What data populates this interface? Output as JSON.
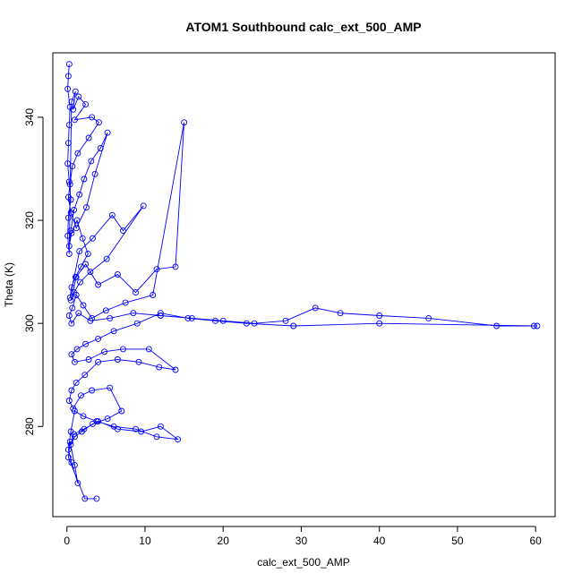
{
  "chart_data": {
    "type": "line",
    "title": "ATOM1 Southbound calc_ext_500_AMP",
    "xlabel": "calc_ext_500_AMP",
    "ylabel": "Theta (K)",
    "xlim": [
      -1.8,
      62.5
    ],
    "ylim": [
      262.5,
      352.5
    ],
    "x_ticks": [
      0,
      10,
      20,
      30,
      40,
      50,
      60
    ],
    "y_ticks": [
      280,
      300,
      320,
      340
    ],
    "grid": false,
    "series_color": "#0000FF",
    "marker": "open-circle",
    "series": [
      {
        "x": [
          0.3,
          0.2,
          0.1,
          0.4,
          0.3,
          0.2,
          0.1,
          0.3,
          0.5,
          0.2,
          0.1,
          0.3,
          0.6,
          1.1,
          0.8,
          1.5,
          2.4,
          1.0,
          3.2,
          4.1,
          2.8,
          1.4,
          0.7,
          0.4,
          0.2,
          0.5,
          1.2,
          2.5,
          3.6,
          5.2,
          4.3,
          3.1,
          2.2,
          1.6,
          0.9,
          0.5,
          0.3,
          0.6,
          1.3,
          2.0,
          2.7,
          1.8,
          1.1,
          0.6,
          0.4,
          1.6,
          3.3,
          5.8,
          7.2,
          9.8,
          5.1,
          3.0,
          1.7,
          0.9,
          0.5,
          1.2,
          2.4,
          4.0,
          6.5,
          8.8,
          11.5,
          13.9,
          15.0,
          11.0,
          7.5,
          5.0,
          3.2,
          2.1,
          1.2,
          0.7,
          0.3,
          0.6,
          1.5,
          3.0,
          5.5,
          8.5,
          12.0,
          16.0,
          20.0,
          24.0,
          28.0,
          31.8,
          35.0,
          40.0,
          46.3,
          55.0,
          60.2,
          59.8,
          40.0,
          29.0,
          23.0,
          19.0,
          15.5,
          12.0,
          9.0,
          6.0,
          4.0,
          2.4,
          1.3,
          0.6,
          1.0,
          2.8,
          4.8,
          7.2,
          10.5,
          13.9,
          11.8,
          9.2,
          6.5,
          4.0,
          2.3,
          1.2,
          0.6,
          0.3,
          0.8,
          1.8,
          3.2,
          5.5,
          7.0,
          5.2,
          3.3,
          1.9,
          1.0,
          0.5,
          0.9,
          2.2,
          4.0,
          6.5,
          9.5,
          12.0,
          14.2,
          11.5,
          8.8,
          6.0,
          3.8,
          2.1,
          1.0,
          0.5,
          0.2,
          0.6,
          1.4,
          1.0,
          0.4,
          0.2,
          2.3,
          3.8
        ],
        "y": [
          350.3,
          348.0,
          345.5,
          342.0,
          338.5,
          335.0,
          331.0,
          327.5,
          324.0,
          320.5,
          317.0,
          313.5,
          343.0,
          345.0,
          341.5,
          344.0,
          342.5,
          339.5,
          340.0,
          339.0,
          336.0,
          333.0,
          330.5,
          327.0,
          324.5,
          321.5,
          318.5,
          322.5,
          329.0,
          337.0,
          334.0,
          331.5,
          328.0,
          325.0,
          322.0,
          318.0,
          315.0,
          317.5,
          320.0,
          316.5,
          313.5,
          311.0,
          309.0,
          307.0,
          305.0,
          314.0,
          316.5,
          321.0,
          318.0,
          322.8,
          312.5,
          310.0,
          308.0,
          306.0,
          304.5,
          309.0,
          311.5,
          307.5,
          309.5,
          306.0,
          310.5,
          311.0,
          339.0,
          305.5,
          304.0,
          302.5,
          301.0,
          303.5,
          305.5,
          303.0,
          301.5,
          300.0,
          302.0,
          300.5,
          301.0,
          302.0,
          301.5,
          301.0,
          300.5,
          300.0,
          300.5,
          303.0,
          302.0,
          301.5,
          301.0,
          299.5,
          299.5,
          299.5,
          300.0,
          299.5,
          300.0,
          300.5,
          301.0,
          302.0,
          300.0,
          298.5,
          297.0,
          296.0,
          295.0,
          294.0,
          292.5,
          293.0,
          294.5,
          295.0,
          295.0,
          291.0,
          291.5,
          292.5,
          293.0,
          292.5,
          290.0,
          288.5,
          287.0,
          285.0,
          283.5,
          286.0,
          287.0,
          287.5,
          283.0,
          281.5,
          280.5,
          279.0,
          278.0,
          276.5,
          278.5,
          279.5,
          281.0,
          279.5,
          279.0,
          280.0,
          277.5,
          278.0,
          279.5,
          280.0,
          281.0,
          282.0,
          283.0,
          279.0,
          275.5,
          273.0,
          269.0,
          272.5,
          277.0,
          274.0,
          266.0,
          266.0
        ]
      }
    ]
  }
}
